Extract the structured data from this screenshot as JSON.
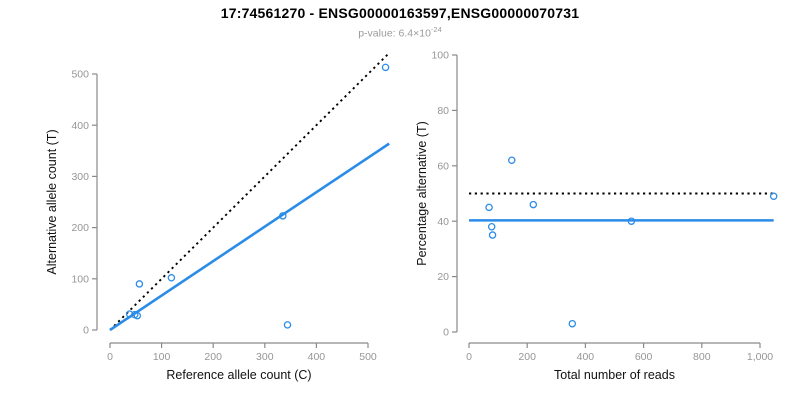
{
  "header": {
    "title": "17:74561270 - ENSG00000163597,ENSG00000070731",
    "subtitle_prefix": "p-value: ",
    "subtitle_mantissa": "6.4×10",
    "subtitle_exponent": "-24"
  },
  "colors": {
    "accent_blue": "#2b8ce8",
    "line_black": "#000000",
    "axis_gray": "#8a8a8a",
    "tick_label_gray": "#969696",
    "axis_title_black": "#111111"
  },
  "chart_data": [
    {
      "type": "scatter",
      "name": "allele-counts-scatter",
      "xlabel": "Reference allele count (C)",
      "ylabel": "Alternative allele count (T)",
      "xlim": [
        0,
        545
      ],
      "ylim": [
        0,
        545
      ],
      "grid": false,
      "xticks": [
        0,
        100,
        200,
        300,
        400,
        500
      ],
      "xtick_labels": [
        "0",
        "100",
        "200",
        "300",
        "400",
        "500"
      ],
      "yticks": [
        0,
        100,
        200,
        300,
        400,
        500
      ],
      "ytick_labels": [
        "0",
        "100",
        "200",
        "300",
        "400",
        "500"
      ],
      "points": [
        [
          38,
          31
        ],
        [
          48,
          30
        ],
        [
          53,
          28
        ],
        [
          57,
          90
        ],
        [
          119,
          102
        ],
        [
          344,
          10
        ],
        [
          335,
          223
        ],
        [
          534,
          513
        ]
      ],
      "lines": [
        {
          "name": "identity-line",
          "style": "dotted",
          "color": "#000000",
          "x": [
            0,
            541
          ],
          "y": [
            0,
            541
          ]
        },
        {
          "name": "fit-line",
          "style": "solid",
          "color": "#2b8ce8",
          "x": [
            0,
            541
          ],
          "y": [
            0,
            364
          ]
        }
      ]
    },
    {
      "type": "scatter",
      "name": "percentage-vs-reads-scatter",
      "xlabel": "Total number of reads",
      "ylabel": "Percentage alternative (T)",
      "xlim": [
        0,
        1060
      ],
      "ylim": [
        0,
        100
      ],
      "grid": false,
      "xticks": [
        0,
        200,
        400,
        600,
        800,
        1000
      ],
      "xtick_labels": [
        "0",
        "200",
        "400",
        "600",
        "800",
        "1,000"
      ],
      "yticks": [
        0,
        20,
        40,
        60,
        80,
        100
      ],
      "ytick_labels": [
        "0",
        "20",
        "40",
        "60",
        "80",
        "100"
      ],
      "points": [
        [
          69,
          45
        ],
        [
          78,
          38
        ],
        [
          81,
          35
        ],
        [
          147,
          62
        ],
        [
          221,
          46
        ],
        [
          355,
          3
        ],
        [
          558,
          40
        ],
        [
          1047,
          49
        ]
      ],
      "lines": [
        {
          "name": "expected-50pct-line",
          "style": "dotted",
          "color": "#000000",
          "x": [
            0,
            1047
          ],
          "y": [
            50,
            50
          ]
        },
        {
          "name": "observed-mean-line",
          "style": "solid",
          "color": "#2b8ce8",
          "x": [
            0,
            1047
          ],
          "y": [
            40.3,
            40.3
          ]
        }
      ]
    }
  ]
}
